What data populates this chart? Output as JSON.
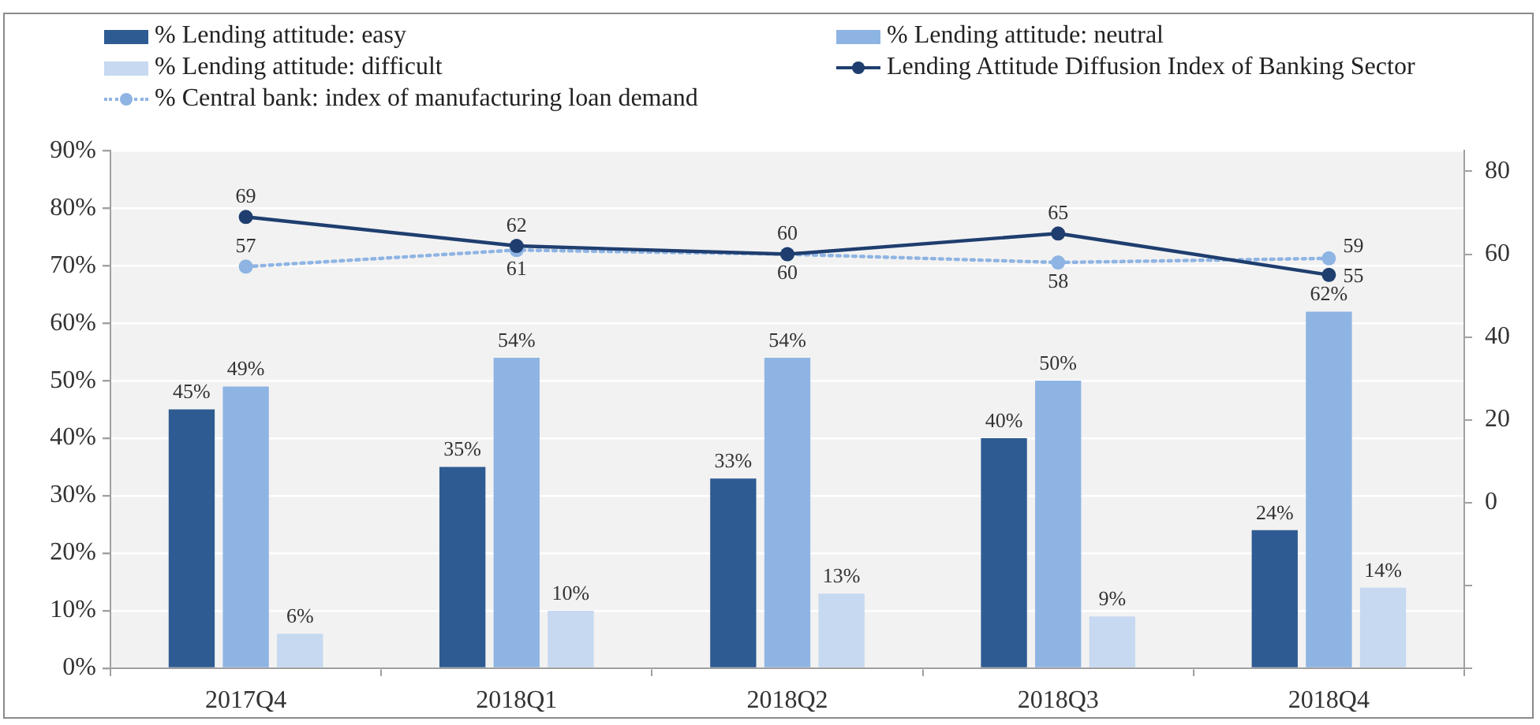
{
  "chart_data": {
    "type": "bar",
    "categories": [
      "2017Q4",
      "2018Q1",
      "2018Q2",
      "2018Q3",
      "2018Q4"
    ],
    "series": [
      {
        "name": "% Lending attitude: easy",
        "color": "#2e5b91",
        "values": [
          45,
          35,
          33,
          40,
          24
        ],
        "value_labels": [
          "45%",
          "35%",
          "33%",
          "40%",
          "24%"
        ]
      },
      {
        "name": "% Lending attitude: neutral",
        "color": "#8eb4e3",
        "values": [
          49,
          54,
          54,
          50,
          62
        ],
        "value_labels": [
          "49%",
          "54%",
          "54%",
          "50%",
          "62%"
        ]
      },
      {
        "name": "% Lending attitude: difficult",
        "color": "#c6d9f1",
        "values": [
          6,
          10,
          13,
          9,
          14
        ],
        "value_labels": [
          "6%",
          "10%",
          "13%",
          "9%",
          "14%"
        ]
      },
      {
        "name": "Lending Attitude Diffusion Index of Banking Sector",
        "type": "line",
        "axis": "y2",
        "color": "#1f3e6f",
        "marker": "circle",
        "line_style": "solid",
        "values": [
          69,
          62,
          60,
          65,
          55
        ],
        "value_labels": [
          "69",
          "62",
          "60",
          "65",
          "55"
        ]
      },
      {
        "name": "% Central bank: index of manufacturing loan demand",
        "type": "line",
        "axis": "y2",
        "color": "#8eb4e3",
        "marker": "circle",
        "line_style": "dotted",
        "values": [
          57,
          61,
          60,
          58,
          59
        ],
        "value_labels": [
          "57",
          "61",
          "60",
          "58",
          "59"
        ]
      }
    ],
    "ylim": [
      0,
      90
    ],
    "yticks": [
      {
        "value": 0,
        "label": "0%"
      },
      {
        "value": 10,
        "label": "10%"
      },
      {
        "value": 20,
        "label": "20%"
      },
      {
        "value": 30,
        "label": "30%"
      },
      {
        "value": 40,
        "label": "40%"
      },
      {
        "value": 50,
        "label": "50%"
      },
      {
        "value": 60,
        "label": "60%"
      },
      {
        "value": 70,
        "label": "70%"
      },
      {
        "value": 80,
        "label": "80%"
      },
      {
        "value": 90,
        "label": "90%"
      }
    ],
    "y2lim": [
      -40,
      85
    ],
    "y2ticks": [
      {
        "value": -40,
        "label": null
      },
      {
        "value": -20,
        "label": null
      },
      0,
      20,
      40,
      60,
      80
    ],
    "grid": "y",
    "legend": "top"
  }
}
